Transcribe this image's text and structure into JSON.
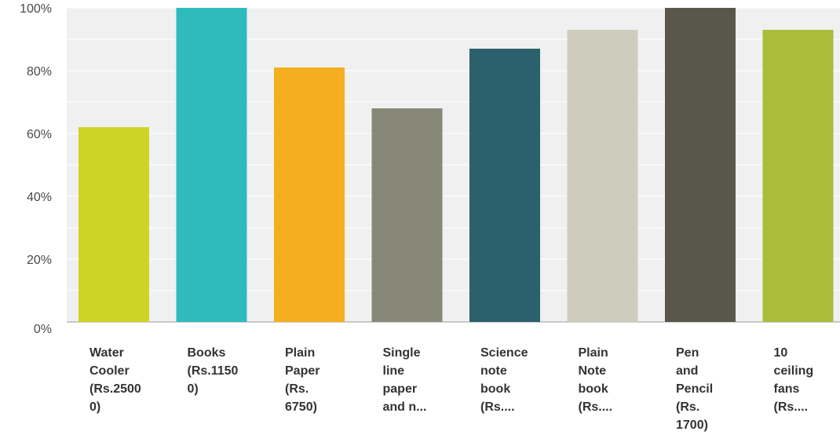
{
  "chart_data": {
    "type": "bar",
    "categories": [
      "Water\nCooler\n(Rs.2500\n0)",
      "Books\n(Rs.1150\n0)",
      "Plain\nPaper\n(Rs.\n6750)",
      "Single\nline\npaper\nand n...",
      "Science\nnote\nbook\n(Rs....",
      "Plain\nNote\nbook\n(Rs....",
      "Pen\nand\nPencil\n(Rs.\n1700)",
      "10\nceiling\nfans\n(Rs...."
    ],
    "values": [
      62,
      100,
      81,
      68,
      87,
      93,
      100,
      93
    ],
    "colors": [
      "#cfd326",
      "#2fbbbd",
      "#f5ae1f",
      "#878877",
      "#2c606d",
      "#cecdbd",
      "#59574a",
      "#a9bd3a"
    ],
    "yticks": [
      "0%",
      "20%",
      "40%",
      "60%",
      "80%",
      "100%"
    ],
    "ylim": [
      0,
      100
    ],
    "grid": true
  }
}
